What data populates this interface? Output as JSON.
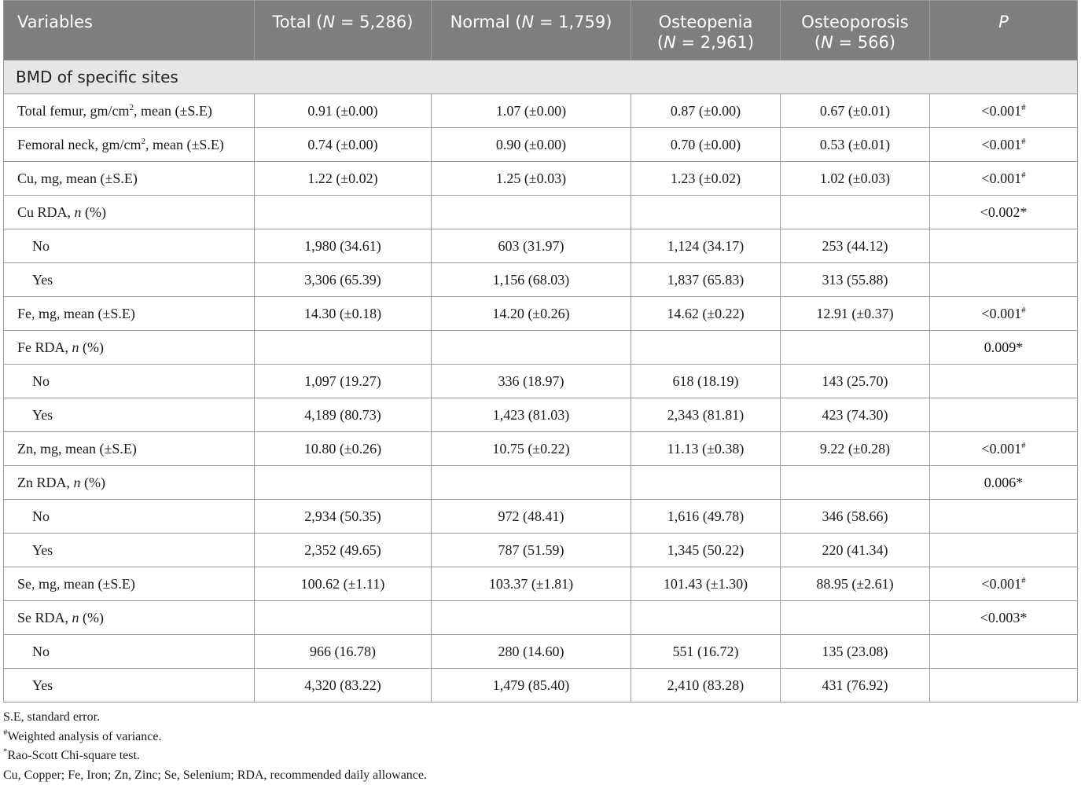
{
  "header": {
    "variables": "Variables",
    "total_pre": "Total (",
    "total_n": "N",
    "total_post": " = 5,286)",
    "normal_pre": "Normal (",
    "normal_n": "N",
    "normal_post": " = 1,759)",
    "osteopenia_line1": "Osteopenia",
    "osteopenia_pre": "(",
    "osteopenia_n": "N",
    "osteopenia_post": " = 2,961)",
    "osteoporosis_line1": "Osteoporosis",
    "osteoporosis_pre": "(",
    "osteoporosis_n": "N",
    "osteoporosis_post": " = 566)",
    "p": "P"
  },
  "section_label": "BMD of specific sites",
  "rows": [
    {
      "label": "Total femur, gm/cm",
      "label_sup": "2",
      "label_after": ", mean (±S.E)",
      "total": "0.91 (±0.00)",
      "normal": "1.07 (±0.00)",
      "osteopenia": "0.87 (±0.00)",
      "osteoporosis": "0.67 (±0.01)",
      "p": "<0.001",
      "p_mark": "#"
    },
    {
      "label": "Femoral neck, gm/cm",
      "label_sup": "2",
      "label_after": ", mean (±S.E)",
      "total": "0.74 (±0.00)",
      "normal": "0.90 (±0.00)",
      "osteopenia": "0.70 (±0.00)",
      "osteoporosis": "0.53 (±0.01)",
      "p": "<0.001",
      "p_mark": "#"
    },
    {
      "label": "Cu, mg, mean (±S.E)",
      "total": "1.22 (±0.02)",
      "normal": "1.25 (±0.03)",
      "osteopenia": "1.23 (±0.02)",
      "osteoporosis": "1.02 (±0.03)",
      "p": "<0.001",
      "p_mark": "#"
    },
    {
      "label": "Cu RDA, ",
      "label_italic": "n",
      "label_after": " (%)",
      "total": "",
      "normal": "",
      "osteopenia": "",
      "osteoporosis": "",
      "p": "<0.002*"
    },
    {
      "label": "No",
      "sub": true,
      "total": "1,980 (34.61)",
      "normal": "603 (31.97)",
      "osteopenia": "1,124 (34.17)",
      "osteoporosis": "253 (44.12)",
      "p": ""
    },
    {
      "label": "Yes",
      "sub": true,
      "total": "3,306 (65.39)",
      "normal": "1,156 (68.03)",
      "osteopenia": "1,837 (65.83)",
      "osteoporosis": "313 (55.88)",
      "p": ""
    },
    {
      "label": "Fe, mg, mean (±S.E)",
      "total": "14.30 (±0.18)",
      "normal": "14.20 (±0.26)",
      "osteopenia": "14.62 (±0.22)",
      "osteoporosis": "12.91 (±0.37)",
      "p": "<0.001",
      "p_mark": "#"
    },
    {
      "label": "Fe RDA, ",
      "label_italic": "n",
      "label_after": " (%)",
      "total": "",
      "normal": "",
      "osteopenia": "",
      "osteoporosis": "",
      "p": "0.009*"
    },
    {
      "label": "No",
      "sub": true,
      "total": "1,097 (19.27)",
      "normal": "336 (18.97)",
      "osteopenia": "618 (18.19)",
      "osteoporosis": "143 (25.70)",
      "p": ""
    },
    {
      "label": "Yes",
      "sub": true,
      "total": "4,189 (80.73)",
      "normal": "1,423 (81.03)",
      "osteopenia": "2,343 (81.81)",
      "osteoporosis": "423 (74.30)",
      "p": ""
    },
    {
      "label": "Zn, mg, mean (±S.E)",
      "total": "10.80 (±0.26)",
      "normal": "10.75 (±0.22)",
      "osteopenia": "11.13 (±0.38)",
      "osteoporosis": "9.22 (±0.28)",
      "p": "<0.001",
      "p_mark": "#"
    },
    {
      "label": "Zn RDA, ",
      "label_italic": "n",
      "label_after": " (%)",
      "total": "",
      "normal": "",
      "osteopenia": "",
      "osteoporosis": "",
      "p": "0.006*"
    },
    {
      "label": "No",
      "sub": true,
      "total": "2,934 (50.35)",
      "normal": "972 (48.41)",
      "osteopenia": "1,616 (49.78)",
      "osteoporosis": "346 (58.66)",
      "p": ""
    },
    {
      "label": "Yes",
      "sub": true,
      "total": "2,352 (49.65)",
      "normal": "787 (51.59)",
      "osteopenia": "1,345 (50.22)",
      "osteoporosis": "220 (41.34)",
      "p": ""
    },
    {
      "label": "Se, mg, mean (±S.E)",
      "total": "100.62 (±1.11)",
      "normal": "103.37 (±1.81)",
      "osteopenia": "101.43 (±1.30)",
      "osteoporosis": "88.95 (±2.61)",
      "p": "<0.001",
      "p_mark": "#"
    },
    {
      "label": "Se RDA, ",
      "label_italic": "n",
      "label_after": " (%)",
      "total": "",
      "normal": "",
      "osteopenia": "",
      "osteoporosis": "",
      "p": "<0.003*"
    },
    {
      "label": "No",
      "sub": true,
      "total": "966 (16.78)",
      "normal": "280 (14.60)",
      "osteopenia": "551 (16.72)",
      "osteoporosis": "135 (23.08)",
      "p": ""
    },
    {
      "label": "Yes",
      "sub": true,
      "total": "4,320 (83.22)",
      "normal": "1,479 (85.40)",
      "osteopenia": "2,410 (83.28)",
      "osteoporosis": "431 (76.92)",
      "p": ""
    }
  ],
  "footnotes": {
    "se": "S.E, standard error.",
    "weighted_mark": "#",
    "weighted": "Weighted analysis of variance.",
    "rao_mark": "*",
    "rao": "Rao-Scott Chi-square test.",
    "abbrev": "Cu, Copper; Fe, Iron; Zn, Zinc; Se, Selenium; RDA, recommended daily allowance."
  }
}
